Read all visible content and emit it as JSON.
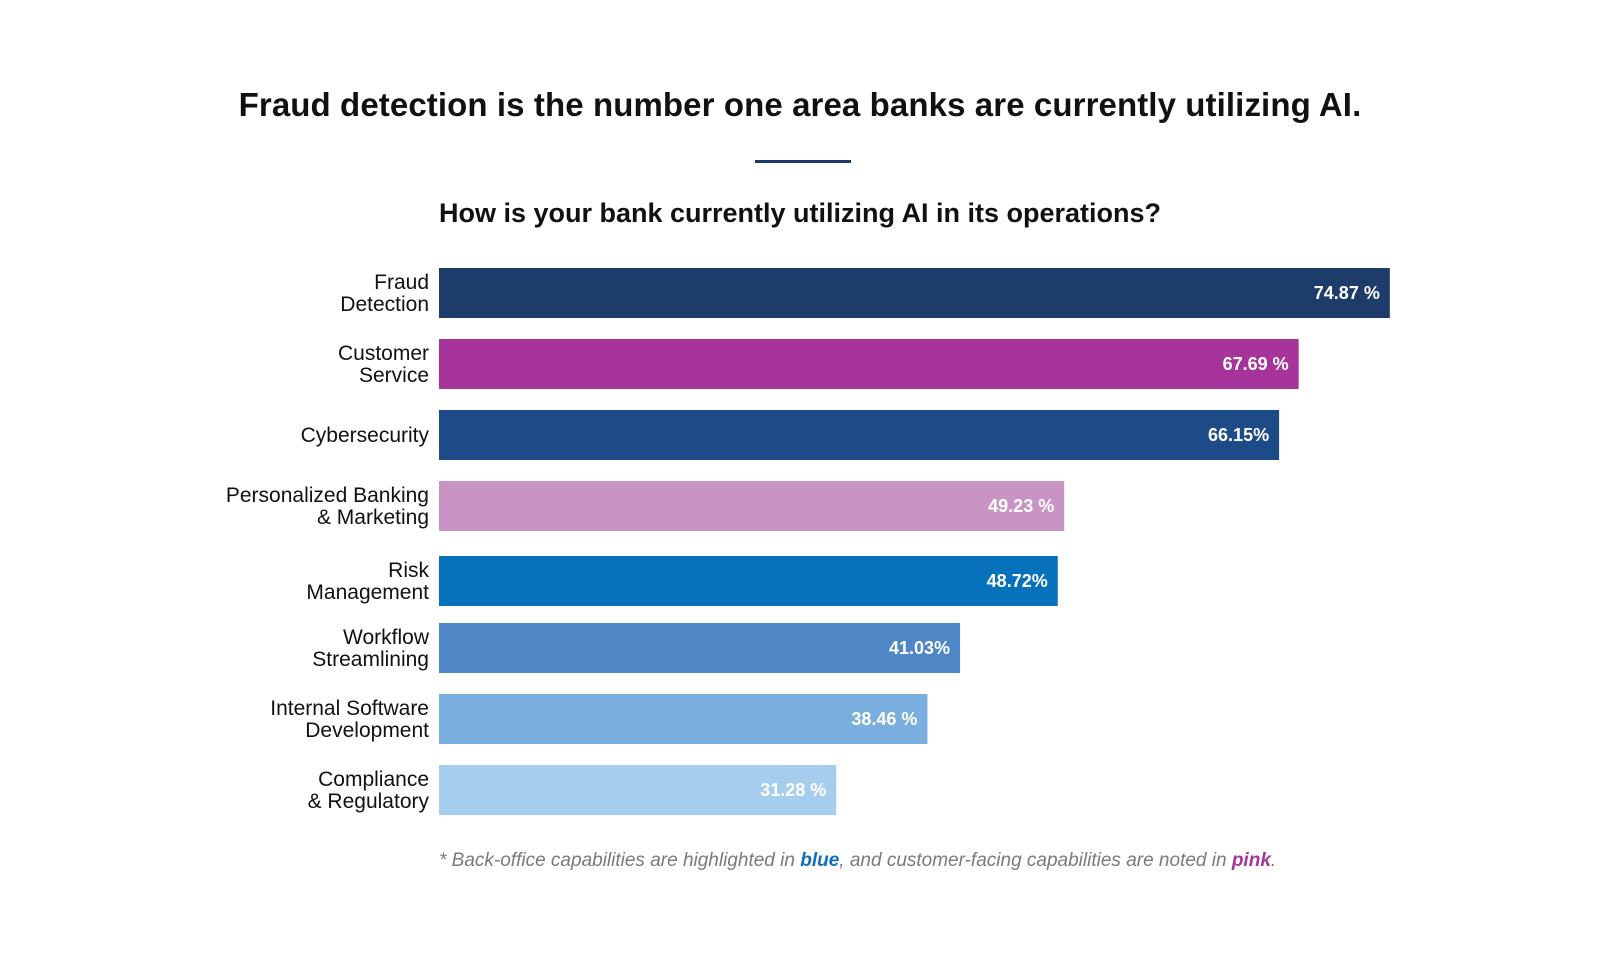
{
  "headline": "Fraud detection is the number one area banks are currently utilizing AI.",
  "footnote": {
    "prefix": "* Back-office capabilities are highlighted in ",
    "blue_word": "blue",
    "middle": ", and customer-facing capabilities are noted in ",
    "pink_word": "pink",
    "suffix": ".",
    "blue_color": "#0f6fba",
    "pink_color": "#a6349a"
  },
  "chart_data": {
    "type": "bar",
    "orientation": "horizontal",
    "title": "How is your bank currently utilizing AI in its operations?",
    "xlabel": "",
    "ylabel": "",
    "xlim": [
      0,
      100
    ],
    "unit": "%",
    "categories": [
      [
        "Fraud",
        "Detection"
      ],
      [
        "Customer",
        "Service"
      ],
      [
        "Cybersecurity"
      ],
      [
        "Personalized Banking",
        "& Marketing"
      ],
      [
        "Risk",
        "Management"
      ],
      [
        "Workflow",
        "Streamlining"
      ],
      [
        "Internal Software",
        "Development"
      ],
      [
        "Compliance",
        "& Regulatory"
      ]
    ],
    "values": [
      74.87,
      67.69,
      66.15,
      49.23,
      48.72,
      41.03,
      38.46,
      31.28
    ],
    "value_labels": [
      "74.87 %",
      "67.69 %",
      "66.15%",
      "49.23 %",
      "48.72%",
      "41.03%",
      "38.46 %",
      "31.28 %"
    ],
    "colors": [
      "#1e3c6a",
      "#a6349a",
      "#1d4b88",
      "#c894c3",
      "#0871bb",
      "#4f86c6",
      "#7aaedf",
      "#a4cdee"
    ],
    "legend": "none",
    "grid": false
  }
}
